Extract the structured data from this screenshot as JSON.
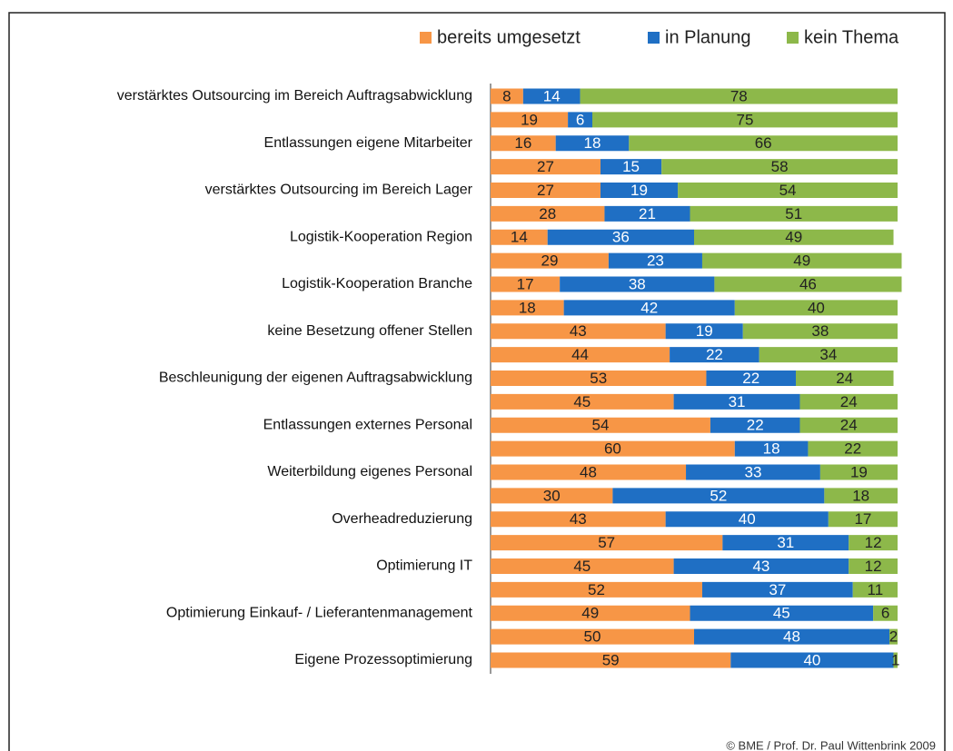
{
  "chart_data": {
    "type": "stacked_bar_horizontal",
    "categories": [
      "verstärktes Outsourcing im Bereich Auftragsabwicklung",
      null,
      "Entlassungen eigene Mitarbeiter",
      null,
      "verstärktes Outsourcing im Bereich Lager",
      null,
      "Logistik-Kooperation Region",
      null,
      "Logistik-Kooperation Branche",
      null,
      "keine Besetzung offener Stellen",
      null,
      "Beschleunigung der eigenen Auftragsabwicklung",
      null,
      "Entlassungen externes Personal",
      null,
      "Weiterbildung eigenes Personal",
      null,
      "Overheadreduzierung",
      null,
      "Optimierung IT",
      null,
      "Optimierung Einkauf- / Lieferantenmanagement",
      null,
      "Eigene Prozessoptimierung"
    ],
    "series": [
      {
        "name": "bereits umgesetzt",
        "color": "#f79646",
        "label_color": "#222222",
        "values": [
          8,
          19,
          16,
          27,
          27,
          28,
          14,
          29,
          17,
          18,
          43,
          44,
          53,
          45,
          54,
          60,
          48,
          30,
          43,
          57,
          45,
          52,
          49,
          50,
          59
        ]
      },
      {
        "name": "in Planung",
        "color": "#1f6fc4",
        "label_color": "#ffffff",
        "values": [
          14,
          6,
          18,
          15,
          19,
          21,
          36,
          23,
          38,
          42,
          19,
          22,
          22,
          31,
          22,
          18,
          33,
          52,
          40,
          31,
          43,
          37,
          45,
          48,
          40
        ]
      },
      {
        "name": "kein Thema",
        "color": "#8db84a",
        "label_color": "#222222",
        "values": [
          78,
          75,
          66,
          58,
          54,
          51,
          49,
          49,
          46,
          40,
          38,
          34,
          24,
          24,
          24,
          22,
          19,
          18,
          17,
          12,
          12,
          11,
          6,
          2,
          1
        ]
      }
    ],
    "xlim": [
      0,
      100
    ],
    "source": "© BME / Prof. Dr. Paul Wittenbrink 2009"
  }
}
